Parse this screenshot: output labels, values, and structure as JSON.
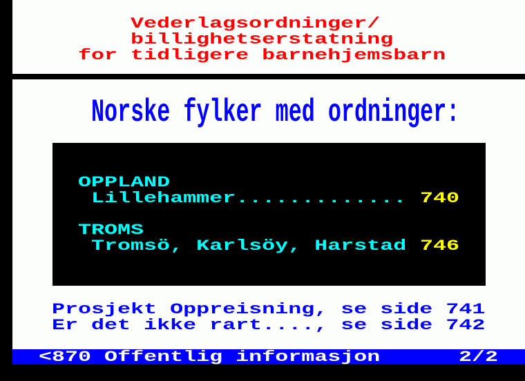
{
  "header": {
    "title_lines": [
      "Vederlagsordninger/",
      "billighetserstatning",
      "for tidligere barnehjemsbarn"
    ]
  },
  "main": {
    "heading": "Norske fylker med ordninger:",
    "counties": [
      {
        "name": "OPPLAND",
        "places": "Lillehammer.............",
        "page": "740"
      },
      {
        "name": "TROMS",
        "places": "Tromsö, Karlsöy, Harstad",
        "page": "746"
      }
    ],
    "links": [
      "Prosjekt Oppreisning, se side 741",
      "Er det ikke rart...., se side 742"
    ]
  },
  "footer": {
    "nav": "<870 Offentlig informasjon",
    "page_counter": "2/2"
  },
  "colors": {
    "background": "#fcfefc",
    "red": "#ff0000",
    "blue": "#0000ff",
    "cyan": "#00ffff",
    "yellow": "#ffff00",
    "black": "#000000"
  }
}
